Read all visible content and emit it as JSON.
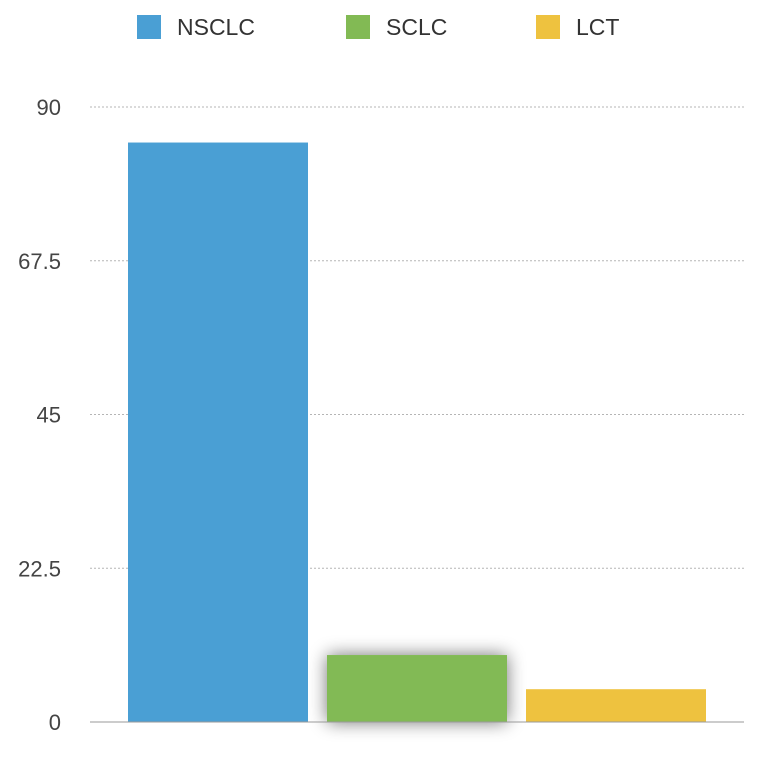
{
  "chart_data": {
    "type": "bar",
    "categories": [
      "NSCLC",
      "SCLC",
      "LCT"
    ],
    "series": [
      {
        "name": "NSCLC",
        "color": "#4A9FD4",
        "values": [
          84.8,
          null,
          null
        ]
      },
      {
        "name": "SCLC",
        "color": "#82BA54",
        "values": [
          null,
          9.8,
          null
        ]
      },
      {
        "name": "LCT",
        "color": "#EEC23F",
        "values": [
          null,
          null,
          4.8
        ]
      }
    ],
    "values": [
      84.8,
      9.8,
      4.8
    ],
    "y_ticks": [
      "0",
      "22.5",
      "45",
      "67.5",
      "90"
    ],
    "ylim": [
      0,
      90
    ],
    "grid": true,
    "grid_style": "dotted",
    "legend_placement": "top-center",
    "title": "",
    "xlabel": "",
    "ylabel": ""
  }
}
